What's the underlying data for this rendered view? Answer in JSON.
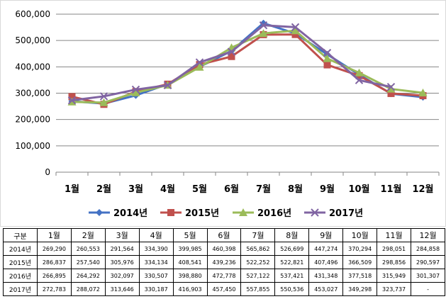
{
  "chart_data": {
    "type": "line",
    "categories": [
      "1월",
      "2월",
      "3월",
      "4월",
      "5월",
      "6월",
      "7월",
      "8월",
      "9월",
      "10월",
      "11월",
      "12월"
    ],
    "ylim": [
      0,
      600000
    ],
    "yticks": [
      0,
      100000,
      200000,
      300000,
      400000,
      500000,
      600000
    ],
    "ytick_labels": [
      "0",
      "100,000",
      "200,000",
      "300,000",
      "400,000",
      "500,000",
      "600,000"
    ],
    "grid": "horizontal",
    "legend_position": "bottom",
    "series": [
      {
        "name": "2014년",
        "color": "#4472c4",
        "marker": "diamond",
        "values": [
          269290,
          260553,
          291564,
          334390,
          399985,
          460398,
          565862,
          526699,
          447274,
          370294,
          298051,
          284858
        ]
      },
      {
        "name": "2015년",
        "color": "#c0504d",
        "marker": "square",
        "values": [
          286837,
          257540,
          305976,
          334134,
          408541,
          439236,
          522252,
          522821,
          407496,
          366509,
          298856,
          290597
        ]
      },
      {
        "name": "2016년",
        "color": "#9bbb59",
        "marker": "triangle",
        "values": [
          266895,
          264292,
          302097,
          330507,
          398880,
          472778,
          527122,
          537421,
          431348,
          377518,
          315949,
          301307
        ]
      },
      {
        "name": "2017년",
        "color": "#8064a2",
        "marker": "x",
        "values": [
          272783,
          288072,
          313646,
          330187,
          416903,
          457450,
          557855,
          550536,
          453027,
          349298,
          323737,
          null
        ]
      }
    ]
  },
  "table": {
    "corner": "구분",
    "headers": [
      "1월",
      "2월",
      "3월",
      "4월",
      "5월",
      "6월",
      "7월",
      "8월",
      "9월",
      "10월",
      "11월",
      "12월"
    ],
    "rows": [
      {
        "label": "2014년",
        "cells": [
          "269,290",
          "260,553",
          "291,564",
          "334,390",
          "399,985",
          "460,398",
          "565,862",
          "526,699",
          "447,274",
          "370,294",
          "298,051",
          "284,858"
        ]
      },
      {
        "label": "2015년",
        "cells": [
          "286,837",
          "257,540",
          "305,976",
          "334,134",
          "408,541",
          "439,236",
          "522,252",
          "522,821",
          "407,496",
          "366,509",
          "298,856",
          "290,597"
        ]
      },
      {
        "label": "2016년",
        "cells": [
          "266,895",
          "264,292",
          "302,097",
          "330,507",
          "398,880",
          "472,778",
          "527,122",
          "537,421",
          "431,348",
          "377,518",
          "315,949",
          "301,307"
        ]
      },
      {
        "label": "2017년",
        "cells": [
          "272,783",
          "288,072",
          "313,646",
          "330,187",
          "416,903",
          "457,450",
          "557,855",
          "550,536",
          "453,027",
          "349,298",
          "323,737",
          "-"
        ]
      }
    ]
  }
}
